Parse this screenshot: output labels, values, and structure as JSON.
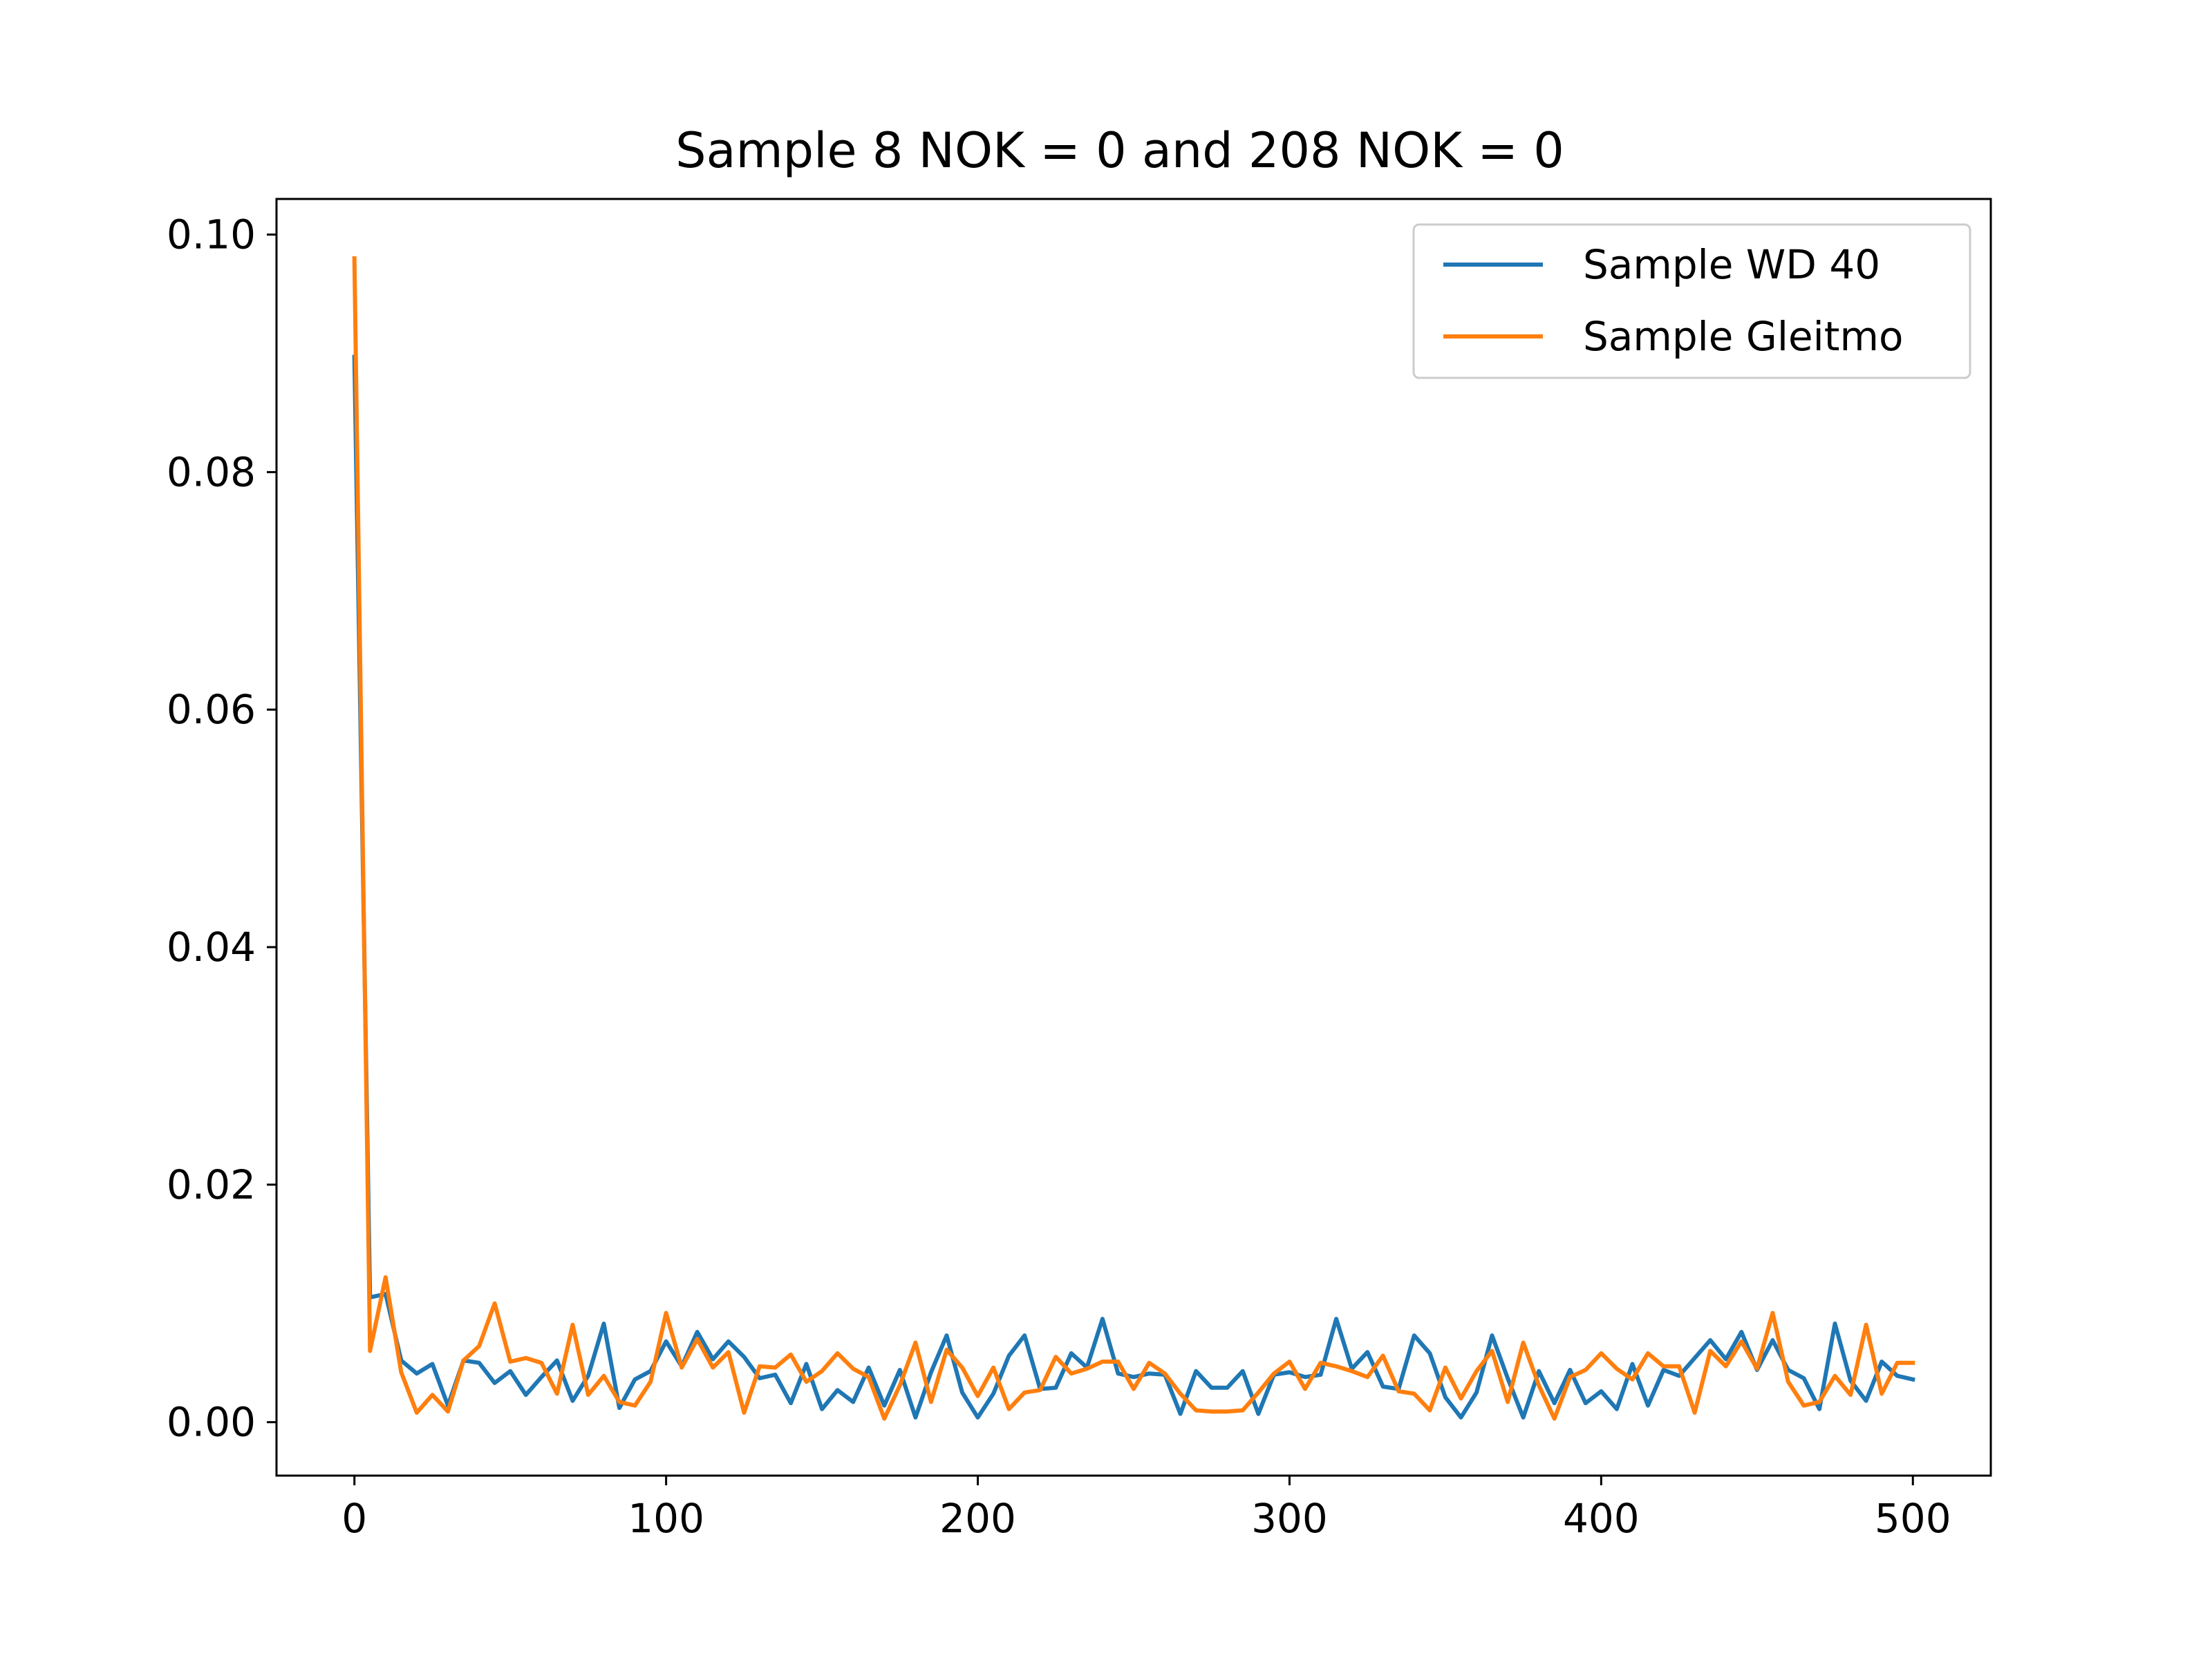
{
  "chart_data": {
    "type": "line",
    "title": "Sample 8 NOK = 0 and 208 NOK = 0",
    "xlabel": "",
    "ylabel": "",
    "xlim": [
      -25,
      525
    ],
    "ylim": [
      -0.0045,
      0.103
    ],
    "xticks": [
      0,
      100,
      200,
      300,
      400,
      500
    ],
    "xtick_labels": [
      "0",
      "100",
      "200",
      "300",
      "400",
      "500"
    ],
    "yticks": [
      0.0,
      0.02,
      0.04,
      0.06,
      0.08,
      0.1
    ],
    "ytick_labels": [
      "0.00",
      "0.02",
      "0.04",
      "0.06",
      "0.08",
      "0.10"
    ],
    "grid": false,
    "legend_position": "top-right",
    "x": [
      0,
      5,
      10,
      15,
      20,
      25,
      30,
      35,
      40,
      45,
      50,
      55,
      60,
      65,
      70,
      75,
      80,
      85,
      90,
      95,
      100,
      105,
      110,
      115,
      120,
      125,
      130,
      135,
      140,
      145,
      150,
      155,
      160,
      165,
      170,
      175,
      180,
      185,
      190,
      195,
      200,
      205,
      210,
      215,
      220,
      225,
      230,
      235,
      240,
      245,
      250,
      255,
      260,
      265,
      270,
      275,
      280,
      285,
      290,
      295,
      300,
      305,
      310,
      315,
      320,
      325,
      330,
      335,
      340,
      345,
      350,
      355,
      360,
      365,
      370,
      375,
      380,
      385,
      390,
      395,
      400,
      405,
      410,
      415,
      420,
      425,
      430,
      435,
      440,
      445,
      450,
      455,
      460,
      465,
      470,
      475,
      480,
      485,
      490,
      495,
      500
    ],
    "series": [
      {
        "name": "Sample WD 40",
        "color": "#1f77b4",
        "values": [
          0.0897,
          0.0105,
          0.0108,
          0.0052,
          0.0041,
          0.0049,
          0.0014,
          0.0052,
          0.005,
          0.0033,
          0.0043,
          0.0023,
          0.0038,
          0.0052,
          0.0018,
          0.0039,
          0.0083,
          0.0012,
          0.0036,
          0.0043,
          0.0068,
          0.0047,
          0.0076,
          0.0053,
          0.0068,
          0.0055,
          0.0037,
          0.004,
          0.0016,
          0.0049,
          0.0011,
          0.0027,
          0.0017,
          0.0046,
          0.0014,
          0.0044,
          0.0004,
          0.0042,
          0.0073,
          0.0025,
          0.0004,
          0.0024,
          0.0056,
          0.0073,
          0.0028,
          0.0029,
          0.0058,
          0.0046,
          0.0087,
          0.0041,
          0.0038,
          0.0041,
          0.004,
          0.0007,
          0.0043,
          0.0029,
          0.0029,
          0.0043,
          0.0007,
          0.004,
          0.0042,
          0.0038,
          0.004,
          0.0087,
          0.0045,
          0.0059,
          0.003,
          0.0028,
          0.0073,
          0.0058,
          0.0021,
          0.0004,
          0.0025,
          0.0073,
          0.0037,
          0.0004,
          0.0043,
          0.0016,
          0.0044,
          0.0016,
          0.0026,
          0.0011,
          0.0049,
          0.0014,
          0.0044,
          0.0039,
          0.0054,
          0.0069,
          0.0053,
          0.0076,
          0.0044,
          0.0069,
          0.0044,
          0.0037,
          0.0011,
          0.0083,
          0.0035,
          0.0018,
          0.0051,
          0.0039,
          0.0036
        ]
      },
      {
        "name": "Sample Gleitmo",
        "color": "#ff7f0e",
        "values": [
          0.098,
          0.006,
          0.0122,
          0.0042,
          0.0008,
          0.0023,
          0.0009,
          0.0052,
          0.0064,
          0.01,
          0.0051,
          0.0054,
          0.005,
          0.0024,
          0.0082,
          0.0023,
          0.0039,
          0.0017,
          0.0014,
          0.0034,
          0.0092,
          0.0046,
          0.007,
          0.0046,
          0.0059,
          0.0008,
          0.0047,
          0.0046,
          0.0057,
          0.0034,
          0.0043,
          0.0058,
          0.0045,
          0.0038,
          0.0003,
          0.0031,
          0.0067,
          0.0017,
          0.0061,
          0.0046,
          0.0022,
          0.0046,
          0.0011,
          0.0025,
          0.0027,
          0.0055,
          0.0041,
          0.0045,
          0.0051,
          0.0051,
          0.0028,
          0.005,
          0.0041,
          0.0024,
          0.001,
          0.0009,
          0.0009,
          0.001,
          0.0025,
          0.0041,
          0.0051,
          0.0028,
          0.005,
          0.0047,
          0.0043,
          0.0038,
          0.0056,
          0.0026,
          0.0024,
          0.001,
          0.0046,
          0.002,
          0.0043,
          0.006,
          0.0017,
          0.0067,
          0.0031,
          0.0003,
          0.0038,
          0.0044,
          0.0058,
          0.0045,
          0.0036,
          0.0058,
          0.0047,
          0.0047,
          0.0008,
          0.006,
          0.0047,
          0.0068,
          0.0045,
          0.0092,
          0.0034,
          0.0014,
          0.0017,
          0.0039,
          0.0023,
          0.0082,
          0.0024,
          0.005,
          0.005
        ]
      }
    ]
  }
}
